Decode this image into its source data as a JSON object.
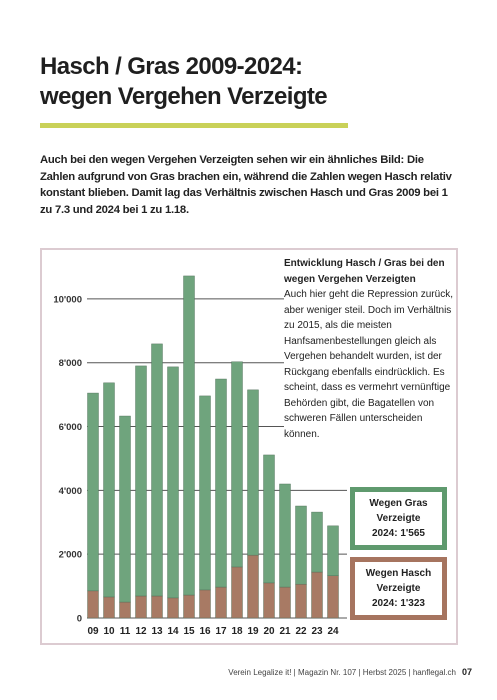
{
  "header": {
    "title_line1": "Hasch / Gras 2009-2024:",
    "title_line2": "wegen Vergehen Verzeigte"
  },
  "intro": "Auch bei den wegen Vergehen Verzeigten sehen wir ein ähnliches Bild: Die Zahlen aufgrund von Gras brachen ein, während die Zahlen wegen Hasch relativ konstant blieben. Damit lag das Verhältnis zwischen Hasch und Gras 2009 bei 1 zu 7.3 und 2024 bei 1 zu 1.18.",
  "chart_data": {
    "type": "stacked_bar",
    "note_title": "Entwicklung Hasch / Gras bei den wegen Vergehen Verzeigten",
    "note_text": "Auch hier geht die Repression zurück, aber weniger steil. Doch im Verhältnis zu 2015, als die meisten Hanfsamenbestellungen gleich als Vergehen behandelt wurden, ist der Rückgang ebenfalls eindrücklich. Es scheint, dass es vermehrt vernünftige Behörden gibt, die Bagatellen von schweren Fällen unterscheiden können.",
    "categories": [
      "09",
      "10",
      "11",
      "12",
      "13",
      "14",
      "15",
      "16",
      "17",
      "18",
      "19",
      "20",
      "21",
      "22",
      "23",
      "24"
    ],
    "series": [
      {
        "name": "Wegen Hasch Verzeigte",
        "legend_label": "2024: 1'323",
        "color": "#a87a64",
        "values": [
          850,
          660,
          500,
          690,
          690,
          630,
          720,
          880,
          970,
          1600,
          1970,
          1100,
          970,
          1060,
          1440,
          1323
        ]
      },
      {
        "name": "Wegen Gras Verzeigte",
        "legend_label": "2024: 1'565",
        "color": "#6fa47d",
        "values": [
          6200,
          6710,
          5830,
          7210,
          7900,
          7240,
          10000,
          6080,
          6520,
          6430,
          5180,
          4010,
          3230,
          2450,
          1880,
          1565
        ]
      }
    ],
    "ylim": [
      0,
      11000
    ],
    "yticks": [
      0,
      {
        "value": 2000,
        "label": "2'000"
      },
      {
        "value": 4000,
        "label": "4'000"
      },
      {
        "value": 6000,
        "label": "6'000"
      },
      {
        "value": 8000,
        "label": "8'000"
      },
      {
        "value": 10000,
        "label": "10'000"
      }
    ],
    "grid": true
  },
  "footer": {
    "text": "Verein Legalize it! | Magazin Nr. 107 | Herbst 2025 | hanflegal.ch",
    "page": "07"
  }
}
